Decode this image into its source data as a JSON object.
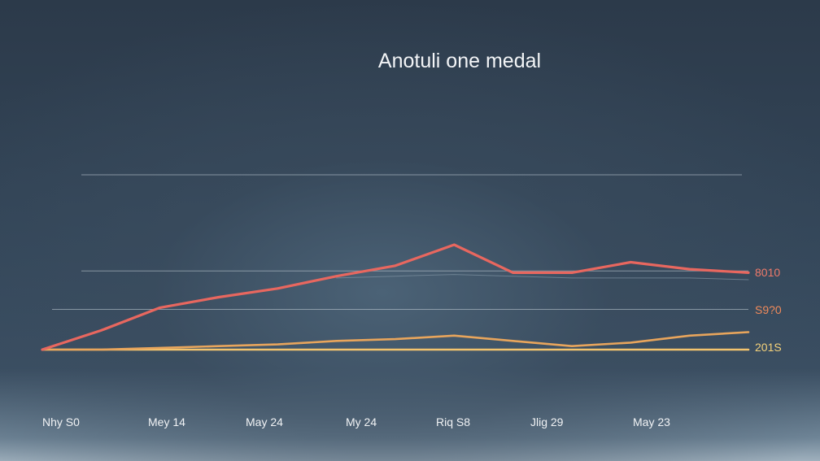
{
  "chart_data": {
    "type": "line",
    "title": "Anotuli one medal",
    "xlabel": "",
    "ylabel": "",
    "grid": true,
    "legend": "none",
    "x_tick_labels": [
      "Nhy S0",
      "Mey 14",
      "May 24",
      "My 24",
      "Riq S8",
      "Jlig 29",
      "May 23"
    ],
    "x": [
      0,
      1,
      2,
      3,
      4,
      5,
      6,
      7,
      8,
      9,
      10,
      11,
      12
    ],
    "xlim": [
      0,
      12
    ],
    "ylim": [
      0,
      100
    ],
    "gridlines": [
      100,
      45,
      23,
      0
    ],
    "end_labels": [
      {
        "text": "8010",
        "color": "#f07a6a"
      },
      {
        "text": "S9?0",
        "color": "#f08a5a"
      },
      {
        "text": "201S",
        "color": "#f5d27a"
      }
    ],
    "series": [
      {
        "color": "#e8675f",
        "values": [
          0,
          11,
          24,
          30,
          35,
          42,
          48,
          60,
          44,
          44,
          50,
          46,
          44
        ]
      },
      {
        "color": "#e8a55c",
        "values": [
          0,
          0,
          1,
          2,
          3,
          5,
          6,
          8,
          5,
          2,
          4,
          8,
          10
        ]
      },
      {
        "color": "#f3c46e",
        "values": [
          0,
          0,
          0,
          0,
          0,
          0,
          0,
          0,
          0,
          0,
          0,
          0,
          0
        ]
      },
      {
        "color": "#7f93a3",
        "values": [
          null,
          null,
          null,
          null,
          null,
          41,
          42,
          43,
          42,
          41,
          41,
          41,
          40
        ]
      }
    ]
  }
}
